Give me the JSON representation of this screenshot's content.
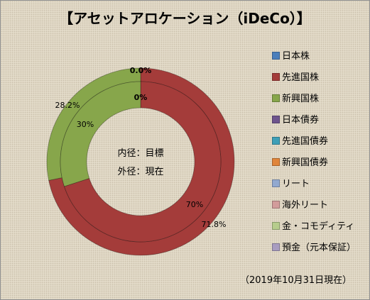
{
  "chart_data": {
    "type": "doughnut",
    "title": "【アセットアロケーション（iDeCo）】",
    "center_note": [
      "内径：目標",
      "外径：現在"
    ],
    "footnote": "（2019年10月31日現在）",
    "categories": [
      "日本株",
      "先進国株",
      "新興国株",
      "日本債券",
      "先進国債券",
      "新興国債券",
      "リート",
      "海外リート",
      "金・コモディティ",
      "預金（元本保証）"
    ],
    "colors": [
      "#4a7ebb",
      "#a43c3a",
      "#87a64b",
      "#6e548d",
      "#3e9fb7",
      "#e0853a",
      "#92a9cf",
      "#d29c9b",
      "#b6cc8c",
      "#a89cc0"
    ],
    "series": [
      {
        "name": "目標",
        "ring": "inner",
        "values": [
          0,
          70,
          30,
          0,
          0,
          0,
          0,
          0,
          0,
          0
        ]
      },
      {
        "name": "現在",
        "ring": "outer",
        "values": [
          0.0,
          71.8,
          28.2,
          0,
          0,
          0,
          0,
          0,
          0,
          0
        ]
      }
    ],
    "data_labels": [
      {
        "text": "0.0%",
        "bold": true
      },
      {
        "text": "0%",
        "bold": true
      },
      {
        "text": "28.2%",
        "bold": false
      },
      {
        "text": "30%",
        "bold": false
      },
      {
        "text": "70%",
        "bold": false
      },
      {
        "text": "71.8%",
        "bold": false
      }
    ],
    "legend_position": "right"
  }
}
